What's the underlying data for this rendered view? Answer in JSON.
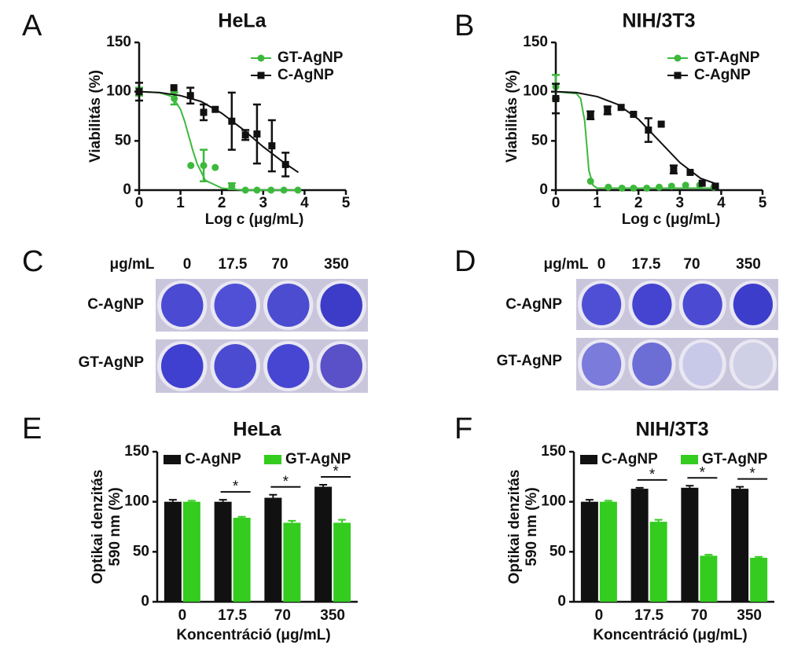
{
  "chart_data": [
    {
      "type": "scatter",
      "panel": "A",
      "title": "HeLa",
      "xlabel": "Log c (μg/mL)",
      "ylabel": "Viabilitás (%)",
      "xlim": [
        0,
        5
      ],
      "xticks": [
        0,
        1,
        2,
        3,
        4,
        5
      ],
      "ylim": [
        0,
        150
      ],
      "yticks": [
        0,
        50,
        100,
        150
      ],
      "legend": "upper right",
      "series": [
        {
          "name": "GT-AgNP",
          "color": "#3cb93c",
          "marker": "circle",
          "x": [
            0,
            0.84,
            0.85,
            1.25,
            1.56,
            1.84,
            2.24,
            2.57,
            2.85,
            3.19,
            3.5,
            3.84
          ],
          "values": [
            100,
            100,
            93,
            25,
            25,
            23,
            4,
            0,
            0,
            0,
            0,
            0
          ],
          "errors": [
            4,
            null,
            6,
            null,
            16,
            null,
            3,
            null,
            null,
            null,
            null,
            null
          ],
          "fit": {
            "x": [
              0,
              0.5,
              0.8,
              1,
              1.1,
              1.2,
              1.3,
              1.4,
              1.6,
              2,
              2.5,
              3,
              3.5,
              3.9
            ],
            "values": [
              100,
              99,
              95,
              82,
              70,
              55,
              40,
              27,
              10,
              2,
              0,
              0,
              0,
              0
            ]
          }
        },
        {
          "name": "C-AgNP",
          "color": "#111111",
          "marker": "square",
          "x": [
            0,
            0.84,
            1.24,
            1.56,
            1.84,
            2.24,
            2.57,
            2.85,
            3.21,
            3.54
          ],
          "values": [
            100,
            104,
            96,
            79,
            82,
            70,
            56,
            57,
            45,
            26
          ],
          "errors": [
            9,
            null,
            8,
            8,
            null,
            29,
            5,
            30,
            26,
            12
          ],
          "fit": {
            "x": [
              0,
              0.5,
              1,
              1.5,
              2,
              2.5,
              3,
              3.5,
              3.85
            ],
            "values": [
              100,
              99,
              96,
              90,
              78,
              62,
              44,
              28,
              18
            ]
          }
        }
      ]
    },
    {
      "type": "scatter",
      "panel": "B",
      "title": "NIH/3T3",
      "xlabel": "Log c (μg/mL)",
      "ylabel": "Viabilitás (%)",
      "xlim": [
        0,
        5
      ],
      "xticks": [
        0,
        1,
        2,
        3,
        4,
        5
      ],
      "ylim": [
        0,
        150
      ],
      "yticks": [
        0,
        50,
        100,
        150
      ],
      "legend": "upper right",
      "series": [
        {
          "name": "GT-AgNP",
          "color": "#3cb93c",
          "marker": "circle",
          "x": [
            0,
            0.84,
            1.27,
            1.6,
            1.88,
            2.2,
            2.5,
            2.8,
            3.14,
            3.48,
            3.82
          ],
          "values": [
            105,
            9,
            3,
            2,
            2,
            2,
            3,
            4,
            5,
            5,
            3
          ],
          "errors": [
            12,
            null,
            null,
            null,
            null,
            null,
            null,
            null,
            null,
            null,
            null
          ],
          "fit": {
            "x": [
              0,
              0.5,
              0.6,
              0.7,
              0.75,
              0.8,
              0.9,
              1,
              1.5,
              3.9
            ],
            "values": [
              100,
              98,
              93,
              70,
              45,
              20,
              5,
              2,
              2,
              2
            ]
          }
        },
        {
          "name": "C-AgNP",
          "color": "#111111",
          "marker": "square",
          "x": [
            0,
            0.84,
            1.25,
            1.58,
            1.88,
            2.24,
            2.55,
            2.85,
            3.25,
            3.54,
            3.86
          ],
          "values": [
            93,
            76,
            81,
            84,
            77,
            61,
            67,
            21,
            18,
            7,
            4
          ],
          "errors": [
            15,
            4,
            4,
            null,
            null,
            12,
            null,
            4,
            null,
            null,
            null
          ],
          "fit": {
            "x": [
              0,
              0.5,
              1,
              1.5,
              2,
              2.5,
              3,
              3.5,
              3.9
            ],
            "values": [
              100,
              99,
              95,
              87,
              72,
              50,
              28,
              12,
              6
            ]
          }
        }
      ]
    },
    {
      "type": "bar",
      "panel": "E",
      "title": "HeLa",
      "xlabel": "Koncentráció (μg/mL)",
      "ylabel": [
        "Optikai denzitás",
        "590 nm (%)"
      ],
      "categories": [
        "0",
        "17.5",
        "70",
        "350"
      ],
      "ylim": [
        0,
        150
      ],
      "yticks": [
        0,
        50,
        100,
        150
      ],
      "legend": "upper left",
      "series": [
        {
          "name": "C-AgNP",
          "color": "#111111",
          "values": [
            100,
            100,
            104,
            115
          ],
          "errors": [
            2,
            2,
            3,
            2
          ]
        },
        {
          "name": "GT-AgNP",
          "color": "#33cc1f",
          "values": [
            100,
            84,
            79,
            79
          ],
          "errors": [
            1,
            1,
            2,
            3
          ]
        }
      ],
      "significance": [
        null,
        "*",
        "*",
        "*"
      ]
    },
    {
      "type": "bar",
      "panel": "F",
      "title": "NIH/3T3",
      "xlabel": "Koncentráció (μg/mL)",
      "ylabel": [
        "Optikai denzitás",
        "590 nm (%)"
      ],
      "categories": [
        "0",
        "17.5",
        "70",
        "350"
      ],
      "ylim": [
        0,
        150
      ],
      "yticks": [
        0,
        50,
        100,
        150
      ],
      "legend": "upper left",
      "series": [
        {
          "name": "C-AgNP",
          "color": "#111111",
          "values": [
            100,
            113,
            114,
            113
          ],
          "errors": [
            2,
            1,
            2,
            2
          ]
        },
        {
          "name": "GT-AgNP",
          "color": "#33cc1f",
          "values": [
            100,
            80,
            46,
            44
          ],
          "errors": [
            1,
            2,
            1,
            1
          ]
        }
      ],
      "significance": [
        null,
        "*",
        "*",
        "*"
      ]
    }
  ],
  "plates": [
    {
      "panel": "C",
      "unit": "μg/mL",
      "columns": [
        "0",
        "17.5",
        "70",
        "350"
      ],
      "rows": [
        "C-AgNP",
        "GT-AgNP"
      ]
    },
    {
      "panel": "D",
      "unit": "μg/mL",
      "columns": [
        "0",
        "17.5",
        "70",
        "350"
      ],
      "rows": [
        "C-AgNP",
        "GT-AgNP"
      ]
    }
  ]
}
